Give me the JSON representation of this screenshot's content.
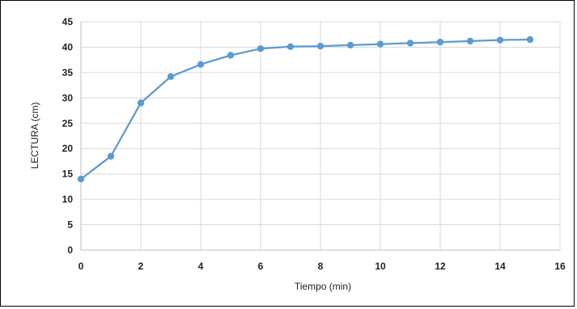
{
  "chart_data": {
    "type": "line",
    "title": "",
    "xlabel": "Tiempo (min)",
    "ylabel": "LECTURA (cm)",
    "xlim": [
      0,
      16
    ],
    "ylim": [
      0,
      45
    ],
    "xticks": [
      0,
      2,
      4,
      6,
      8,
      10,
      12,
      14,
      16
    ],
    "yticks": [
      0,
      5,
      10,
      15,
      20,
      25,
      30,
      35,
      40,
      45
    ],
    "grid": true,
    "legend": "none",
    "series": [
      {
        "color": "#5b9bd5",
        "x": [
          0,
          1,
          2,
          3,
          4,
          5,
          6,
          7,
          8,
          9,
          10,
          11,
          12,
          13,
          14,
          15
        ],
        "y": [
          14,
          18.5,
          29,
          34.2,
          36.6,
          38.4,
          39.7,
          40.1,
          40.2,
          40.4,
          40.6,
          40.8,
          41.0,
          41.2,
          41.4,
          41.5
        ]
      }
    ]
  }
}
